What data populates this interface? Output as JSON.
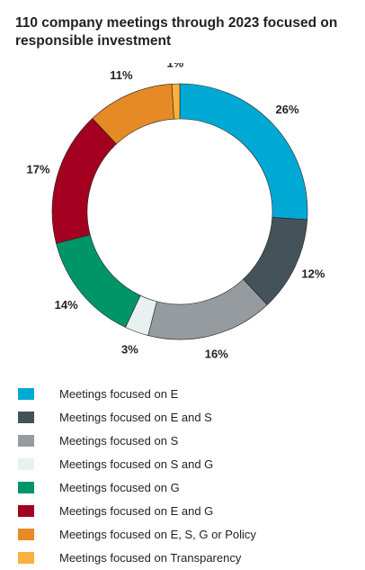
{
  "title": "110 company meetings through 2023 focused on responsible investment",
  "chart_data": {
    "type": "pie",
    "variant": "donut",
    "title": "110 company meetings through 2023 focused on responsible investment",
    "value_unit": "%",
    "legend_position": "bottom",
    "categories": [
      "Meetings focused on E",
      "Meetings focused on E and S",
      "Meetings focused on S",
      "Meetings focused on S and G",
      "Meetings focused on G",
      "Meetings focused on E and G",
      "Meetings focused on E, S, G or Policy",
      "Meetings focused on Transparency"
    ],
    "values": [
      26,
      12,
      16,
      3,
      14,
      17,
      11,
      1
    ],
    "labels": [
      "26%",
      "12%",
      "16%",
      "3%",
      "14%",
      "17%",
      "11%",
      "1%"
    ],
    "colors": [
      "#00a9d4",
      "#44525a",
      "#959b9f",
      "#e9f1f0",
      "#009566",
      "#a3001f",
      "#e68a25",
      "#f7b13c"
    ]
  }
}
